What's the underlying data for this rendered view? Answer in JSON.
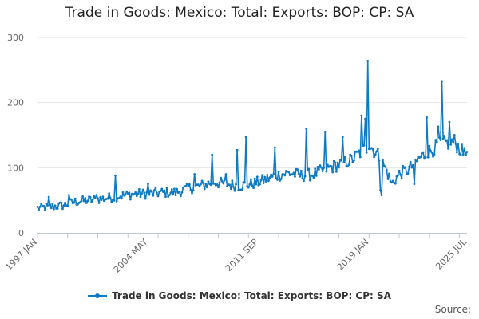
{
  "chart_data": {
    "type": "line",
    "title": "Trade in Goods: Mexico: Total: Exports: BOP: CP: SA",
    "xlabel": "",
    "ylabel": "",
    "ylim": [
      0,
      300
    ],
    "yticks": [
      0,
      100,
      200,
      300
    ],
    "grid": true,
    "legend_position": "bottom",
    "x_tick_labels": [
      "1997 JAN",
      "2004 MAY",
      "2011 SEP",
      "2019 JAN",
      "2025 JUL"
    ],
    "x_tick_indices": [
      0,
      88,
      176,
      264,
      342
    ],
    "series": [
      {
        "name": "Trade in Goods: Mexico: Total: Exports: BOP: CP: SA",
        "color": "#0d7ac4",
        "anchors": [
          [
            0,
            38
          ],
          [
            10,
            40
          ],
          [
            20,
            42
          ],
          [
            30,
            48
          ],
          [
            40,
            50
          ],
          [
            50,
            52
          ],
          [
            60,
            55
          ],
          [
            70,
            58
          ],
          [
            80,
            60
          ],
          [
            88,
            60
          ],
          [
            100,
            62
          ],
          [
            110,
            62
          ],
          [
            120,
            68
          ],
          [
            130,
            72
          ],
          [
            140,
            78
          ],
          [
            150,
            75
          ],
          [
            160,
            72
          ],
          [
            170,
            75
          ],
          [
            176,
            78
          ],
          [
            190,
            88
          ],
          [
            200,
            92
          ],
          [
            210,
            88
          ],
          [
            220,
            90
          ],
          [
            230,
            98
          ],
          [
            240,
            105
          ],
          [
            250,
            112
          ],
          [
            260,
            128
          ],
          [
            264,
            135
          ],
          [
            272,
            118
          ],
          [
            278,
            95
          ],
          [
            282,
            75
          ],
          [
            288,
            90
          ],
          [
            296,
            98
          ],
          [
            304,
            115
          ],
          [
            312,
            125
          ],
          [
            320,
            135
          ],
          [
            326,
            138
          ],
          [
            332,
            140
          ],
          [
            336,
            130
          ],
          [
            342,
            115
          ],
          [
            343,
            102
          ]
        ],
        "spikes": [
          [
            9,
            55
          ],
          [
            25,
            58
          ],
          [
            47,
            58
          ],
          [
            62,
            88
          ],
          [
            88,
            75
          ],
          [
            120,
            72
          ],
          [
            125,
            90
          ],
          [
            139,
            120
          ],
          [
            150,
            90
          ],
          [
            159,
            127
          ],
          [
            166,
            147
          ],
          [
            189,
            131
          ],
          [
            214,
            160
          ],
          [
            229,
            155
          ],
          [
            243,
            147
          ],
          [
            258,
            180
          ],
          [
            261,
            175
          ],
          [
            263,
            264
          ],
          [
            273,
            65
          ],
          [
            274,
            58
          ],
          [
            300,
            75
          ],
          [
            310,
            177
          ],
          [
            319,
            163
          ],
          [
            322,
            233
          ],
          [
            328,
            170
          ],
          [
            340,
            130
          ],
          [
            341,
            120
          ]
        ],
        "noise": 7
      }
    ]
  },
  "legend": {
    "label": "Trade in Goods: Mexico: Total: Exports: BOP: CP: SA"
  },
  "source": {
    "label": "Source:"
  }
}
